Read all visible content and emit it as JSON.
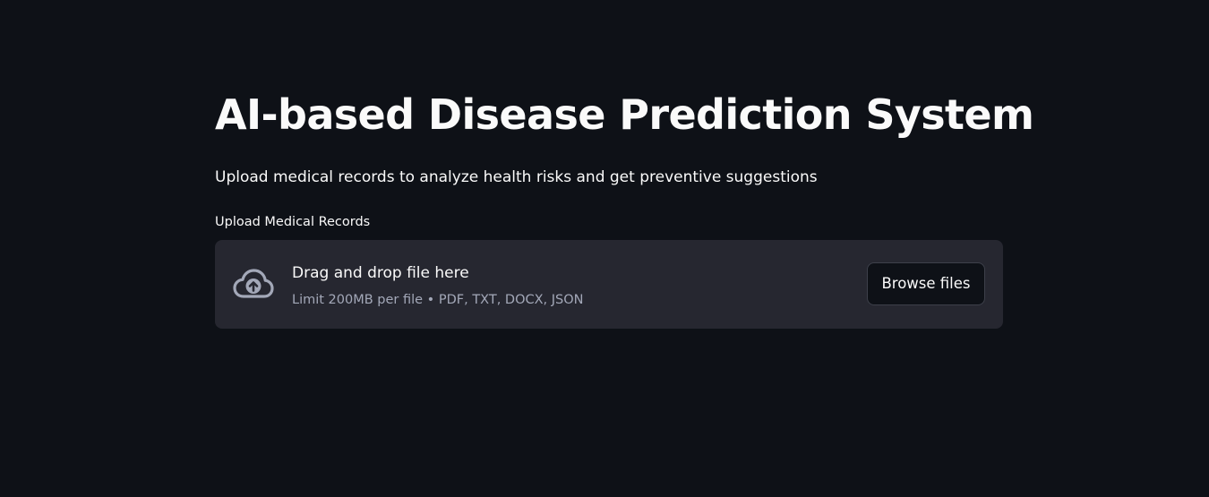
{
  "page": {
    "title": "AI-based Disease Prediction System",
    "subtitle": "Upload medical records to analyze health risks and get preventive suggestions"
  },
  "uploader": {
    "label": "Upload Medical Records",
    "dropzone_title": "Drag and drop file here",
    "limit_text": "Limit 200MB per file • PDF, TXT, DOCX, JSON",
    "browse_label": "Browse files",
    "icon": "cloud-upload-icon"
  },
  "colors": {
    "background": "#0e1117",
    "dropzone": "#262730",
    "text": "#fafafa",
    "muted_text": "#a3a8b8",
    "icon": "#a3a8b8"
  }
}
